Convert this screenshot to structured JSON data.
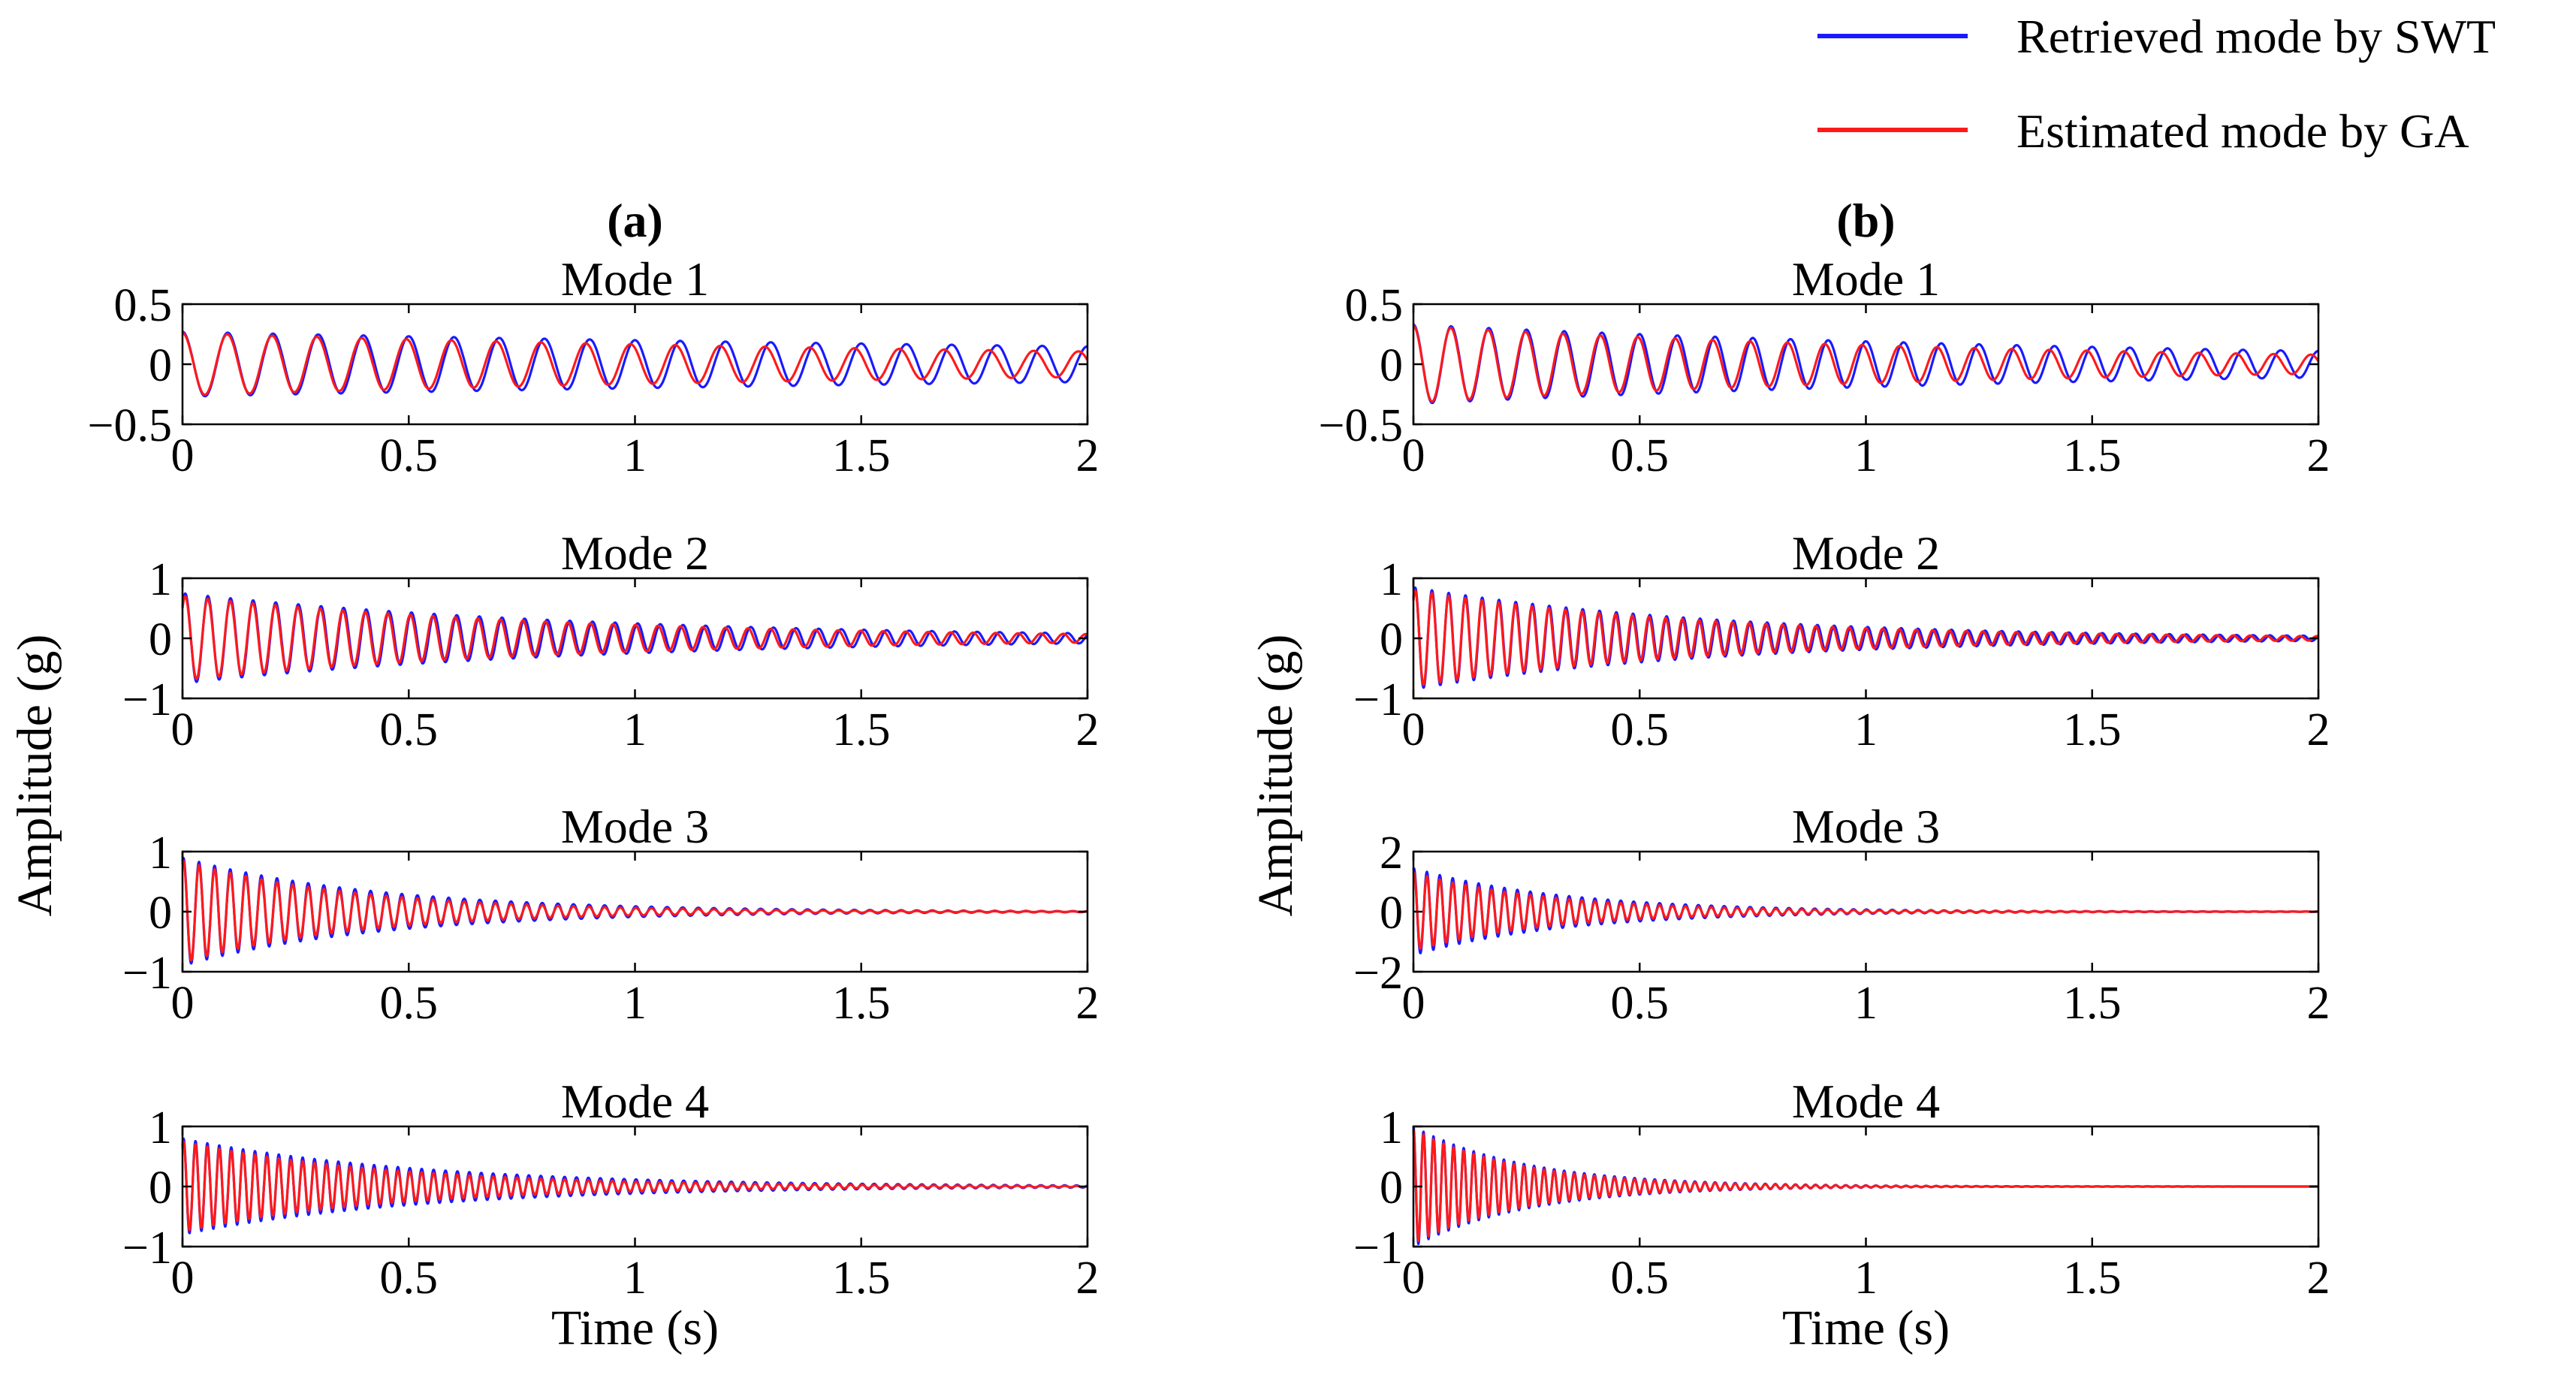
{
  "chart_data": {
    "type": "line",
    "legend": {
      "position": "top-right",
      "entries": [
        {
          "name": "Retrieved mode by SWT",
          "color": "#1a1aff"
        },
        {
          "name": "Estimated mode by GA",
          "color": "#ff1a1a"
        }
      ]
    },
    "ylabel": "Amplitude (g)",
    "xlabel": "Time (s)",
    "columns": [
      {
        "label": "(a)",
        "panels": [
          {
            "title": "Mode 1",
            "ylim": [
              -0.5,
              0.5
            ],
            "yticks": [
              {
                "v": 0.5,
                "t": "0.5"
              },
              {
                "v": 0,
                "t": "0"
              },
              {
                "v": -0.5,
                "t": "−0.5"
              }
            ],
            "xlim": [
              0,
              2
            ],
            "xticks": [
              {
                "v": 0,
                "t": "0"
              },
              {
                "v": 0.5,
                "t": "0.5"
              },
              {
                "v": 1,
                "t": "1"
              },
              {
                "v": 1.5,
                "t": "1.5"
              },
              {
                "v": 2,
                "t": "2"
              }
            ],
            "series": [
              {
                "name": "Retrieved mode by SWT",
                "freq_hz": 10,
                "amp": 0.27,
                "decay": 0.3,
                "phase": 1.5708
              },
              {
                "name": "Estimated mode by GA",
                "freq_hz": 10.1,
                "amp": 0.26,
                "decay": 0.45,
                "phase": 1.5708
              }
            ]
          },
          {
            "title": "Mode 2",
            "ylim": [
              -1,
              1
            ],
            "yticks": [
              {
                "v": 1,
                "t": "1"
              },
              {
                "v": 0,
                "t": "0"
              },
              {
                "v": -1,
                "t": "−1"
              }
            ],
            "xlim": [
              0,
              2
            ],
            "xticks": [
              {
                "v": 0,
                "t": "0"
              },
              {
                "v": 0.5,
                "t": "0.5"
              },
              {
                "v": 1,
                "t": "1"
              },
              {
                "v": 1.5,
                "t": "1.5"
              },
              {
                "v": 2,
                "t": "2"
              }
            ],
            "series": [
              {
                "name": "Retrieved mode by SWT",
                "freq_hz": 20,
                "amp": 0.75,
                "decay": 1.1,
                "phase": 0.8
              },
              {
                "name": "Estimated mode by GA",
                "freq_hz": 20.1,
                "amp": 0.7,
                "decay": 1.15,
                "phase": 0.8
              }
            ]
          },
          {
            "title": "Mode 3",
            "ylim": [
              -1,
              1
            ],
            "yticks": [
              {
                "v": 1,
                "t": "1"
              },
              {
                "v": 0,
                "t": "0"
              },
              {
                "v": -1,
                "t": "−1"
              }
            ],
            "xlim": [
              0,
              2
            ],
            "xticks": [
              {
                "v": 0,
                "t": "0"
              },
              {
                "v": 0.5,
                "t": "0.5"
              },
              {
                "v": 1,
                "t": "1"
              },
              {
                "v": 1.5,
                "t": "1.5"
              },
              {
                "v": 2,
                "t": "2"
              }
            ],
            "series": [
              {
                "name": "Retrieved mode by SWT",
                "freq_hz": 29,
                "amp": 0.9,
                "decay": 2.3,
                "phase": 1.2
              },
              {
                "name": "Estimated mode by GA",
                "freq_hz": 29,
                "amp": 0.85,
                "decay": 2.6,
                "phase": 1.2
              }
            ]
          },
          {
            "title": "Mode 4",
            "ylim": [
              -1,
              1
            ],
            "yticks": [
              {
                "v": 1,
                "t": "1"
              },
              {
                "v": 0,
                "t": "0"
              },
              {
                "v": -1,
                "t": "−1"
              }
            ],
            "xlim": [
              0,
              2
            ],
            "xticks": [
              {
                "v": 0,
                "t": "0"
              },
              {
                "v": 0.5,
                "t": "0.5"
              },
              {
                "v": 1,
                "t": "1"
              },
              {
                "v": 1.5,
                "t": "1.5"
              },
              {
                "v": 2,
                "t": "2"
              }
            ],
            "series": [
              {
                "name": "Retrieved mode by SWT",
                "freq_hz": 38,
                "amp": 0.8,
                "decay": 1.9,
                "phase": 1.0
              },
              {
                "name": "Estimated mode by GA",
                "freq_hz": 38,
                "amp": 0.75,
                "decay": 2.2,
                "phase": 1.0
              }
            ]
          }
        ]
      },
      {
        "label": "(b)",
        "panels": [
          {
            "title": "Mode 1",
            "ylim": [
              -0.5,
              0.5
            ],
            "yticks": [
              {
                "v": 0.5,
                "t": "0.5"
              },
              {
                "v": 0,
                "t": "0"
              },
              {
                "v": -0.5,
                "t": "−0.5"
              }
            ],
            "xlim": [
              0,
              2
            ],
            "xticks": [
              {
                "v": 0,
                "t": "0"
              },
              {
                "v": 0.5,
                "t": "0.5"
              },
              {
                "v": 1,
                "t": "1"
              },
              {
                "v": 1.5,
                "t": "1.5"
              },
              {
                "v": 2,
                "t": "2"
              }
            ],
            "series": [
              {
                "name": "Retrieved mode by SWT",
                "freq_hz": 12,
                "amp": 0.33,
                "decay": 0.55,
                "phase": 1.5708
              },
              {
                "name": "Estimated mode by GA",
                "freq_hz": 12.1,
                "amp": 0.32,
                "decay": 0.7,
                "phase": 1.5708
              }
            ]
          },
          {
            "title": "Mode 2",
            "ylim": [
              -1,
              1
            ],
            "yticks": [
              {
                "v": 1,
                "t": "1"
              },
              {
                "v": 0,
                "t": "0"
              },
              {
                "v": -1,
                "t": "−1"
              }
            ],
            "xlim": [
              0,
              2
            ],
            "xticks": [
              {
                "v": 0,
                "t": "0"
              },
              {
                "v": 0.5,
                "t": "0.5"
              },
              {
                "v": 1,
                "t": "1"
              },
              {
                "v": 1.5,
                "t": "1.5"
              },
              {
                "v": 2,
                "t": "2"
              }
            ],
            "series": [
              {
                "name": "Retrieved mode by SWT",
                "freq_hz": 27,
                "amp": 0.85,
                "decay": 1.5,
                "phase": 0.9
              },
              {
                "name": "Estimated mode by GA",
                "freq_hz": 27.1,
                "amp": 0.8,
                "decay": 1.55,
                "phase": 0.9
              }
            ]
          },
          {
            "title": "Mode 3",
            "ylim": [
              -2,
              2
            ],
            "yticks": [
              {
                "v": 2,
                "t": "2"
              },
              {
                "v": 0,
                "t": "0"
              },
              {
                "v": -2,
                "t": "−2"
              }
            ],
            "xlim": [
              0,
              2
            ],
            "xticks": [
              {
                "v": 0,
                "t": "0"
              },
              {
                "v": 0.5,
                "t": "0.5"
              },
              {
                "v": 1,
                "t": "1"
              },
              {
                "v": 1.5,
                "t": "1.5"
              },
              {
                "v": 2,
                "t": "2"
              }
            ],
            "series": [
              {
                "name": "Retrieved mode by SWT",
                "freq_hz": 35,
                "amp": 1.45,
                "decay": 3.0,
                "phase": 1.3
              },
              {
                "name": "Estimated mode by GA",
                "freq_hz": 35,
                "amp": 1.3,
                "decay": 3.3,
                "phase": 1.3
              }
            ]
          },
          {
            "title": "Mode 4",
            "ylim": [
              -1,
              1
            ],
            "yticks": [
              {
                "v": 1,
                "t": "1"
              },
              {
                "v": 0,
                "t": "0"
              },
              {
                "v": -1,
                "t": "−1"
              }
            ],
            "xlim": [
              0,
              2
            ],
            "xticks": [
              {
                "v": 0,
                "t": "0"
              },
              {
                "v": 0.5,
                "t": "0.5"
              },
              {
                "v": 1,
                "t": "1"
              },
              {
                "v": 1.5,
                "t": "1.5"
              },
              {
                "v": 2,
                "t": "2"
              }
            ],
            "series": [
              {
                "name": "Retrieved mode by SWT",
                "freq_hz": 45,
                "amp": 1.0,
                "decay": 4.0,
                "phase": 1.5708
              },
              {
                "name": "Estimated mode by GA",
                "freq_hz": 45,
                "amp": 0.95,
                "decay": 4.2,
                "phase": 1.5708
              }
            ]
          }
        ]
      }
    ]
  }
}
